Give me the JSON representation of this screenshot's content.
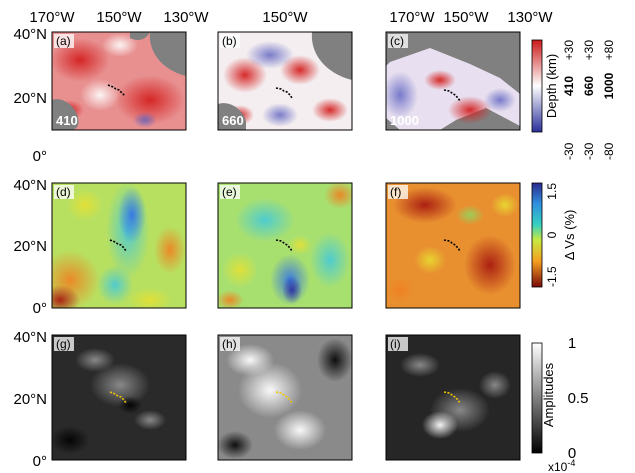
{
  "figure": {
    "top_lon_labels": {
      "col1": [
        "170°W",
        "150°W",
        "130°W"
      ],
      "col2": [
        "150°W"
      ],
      "col3": [
        "170°W",
        "150°W",
        "130°W"
      ]
    },
    "lat_labels": {
      "row1": [
        "40°N",
        "20°N",
        "0°"
      ],
      "row2": [
        "40°N",
        "20°N",
        "0°"
      ],
      "row3": [
        "40°N",
        "20°N",
        "0°"
      ]
    },
    "panels": [
      {
        "id": "a",
        "label": "(a)",
        "depth_label": "410",
        "map": "depth"
      },
      {
        "id": "b",
        "label": "(b)",
        "depth_label": "660",
        "map": "depth"
      },
      {
        "id": "c",
        "label": "(c)",
        "depth_label": "1000",
        "map": "depth"
      },
      {
        "id": "d",
        "label": "(d)",
        "map": "vs"
      },
      {
        "id": "e",
        "label": "(e)",
        "map": "vs"
      },
      {
        "id": "f",
        "label": "(f)",
        "map": "vs"
      },
      {
        "id": "g",
        "label": "(g)",
        "map": "amp"
      },
      {
        "id": "h",
        "label": "(h)",
        "map": "amp"
      },
      {
        "id": "i",
        "label": "(i)",
        "map": "amp"
      }
    ],
    "colorbars": {
      "depth": {
        "title": "Depth (km)",
        "columns": [
          {
            "name": "410",
            "top": "+30",
            "bottom": "-30"
          },
          {
            "name": "660",
            "top": "+30",
            "bottom": "-30"
          },
          {
            "name": "1000",
            "top": "+80",
            "bottom": "-80"
          }
        ],
        "colors": [
          "#2a2f9a",
          "#ffffff",
          "#cc1a1a"
        ]
      },
      "vs": {
        "title": "Δ Vs (%)",
        "ticks": [
          "1.5",
          "0",
          "-1.5"
        ],
        "colors": [
          "#2b2a8f",
          "#2f8fe0",
          "#35d0c0",
          "#c8e840",
          "#f5a020",
          "#7a0a0a"
        ]
      },
      "amp": {
        "title": "Amplitudes",
        "ticks": [
          "1",
          "0.5",
          "0"
        ],
        "exponent": "x10",
        "exponent_power": "-4",
        "colors": [
          "#000000",
          "#ffffff"
        ]
      }
    },
    "land_color": "#808080",
    "hotspot_color_rows_1_2": "#000000",
    "hotspot_color_row_3": "#f2c500"
  }
}
